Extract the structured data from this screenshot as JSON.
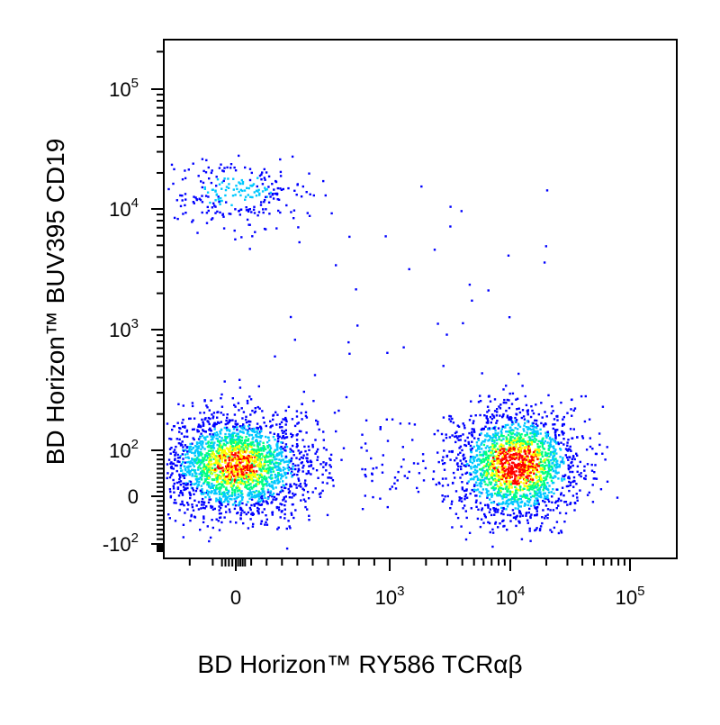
{
  "chart_data": {
    "type": "scatter",
    "subtype": "flow-cytometry density dot plot (pseudocolor)",
    "xlabel": "BD Horizon™ RY586 TCRαβ",
    "ylabel": "BD Horizon™ BUV395 CD19",
    "x_scale": "biexponential",
    "y_scale": "biexponential",
    "x_ticks": [
      {
        "value": 0,
        "base": "0",
        "exp": ""
      },
      {
        "value": 1000,
        "base": "10",
        "exp": "3"
      },
      {
        "value": 10000,
        "base": "10",
        "exp": "4"
      },
      {
        "value": 100000,
        "base": "10",
        "exp": "5"
      }
    ],
    "y_ticks": [
      {
        "value": -100,
        "base": "-10",
        "exp": "2"
      },
      {
        "value": 0,
        "base": "0",
        "exp": ""
      },
      {
        "value": 100,
        "base": "10",
        "exp": "2"
      },
      {
        "value": 1000,
        "base": "10",
        "exp": "3"
      },
      {
        "value": 10000,
        "base": "10",
        "exp": "4"
      },
      {
        "value": 100000,
        "base": "10",
        "exp": "5"
      }
    ],
    "xlim": [
      -250,
      250000
    ],
    "ylim": [
      -200,
      250000
    ],
    "grid": false,
    "legend": "none",
    "density_colors": [
      "#0000ff",
      "#00c8ff",
      "#00ff80",
      "#ffff00",
      "#ff0000"
    ],
    "populations": [
      {
        "label": "",
        "x_center": 0,
        "y_center": 14000,
        "events": 260,
        "peak_density": 0.3
      },
      {
        "label": "",
        "x_center": 0,
        "y_center": 70,
        "events": 2300,
        "peak_density": 0.85
      },
      {
        "label": "",
        "x_center": 11000,
        "y_center": 70,
        "events": 2000,
        "peak_density": 1.0
      }
    ]
  }
}
